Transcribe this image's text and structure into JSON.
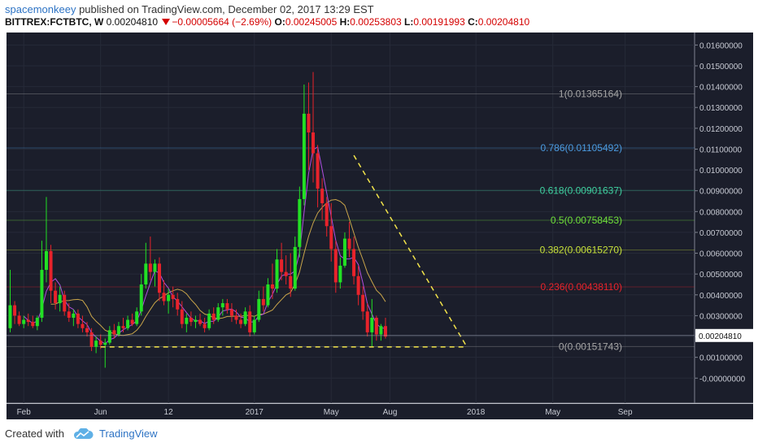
{
  "header": {
    "author": "spacemonkeey",
    "published_text": "published on TradingView.com, December 02, 2017 13:29 EST",
    "symbol": "BITTREX:FCTBTC, W",
    "last": "0.00204810",
    "change": "−0.00005664 (−2.69%)",
    "o_label": "O:",
    "o_value": "0.00245005",
    "h_label": "H:",
    "h_value": "0.00253803",
    "l_label": "L:",
    "l_value": "0.00191993",
    "c_label": "C:",
    "c_value": "0.00204810"
  },
  "footer": {
    "created_with": "Created with",
    "brand": "TradingView"
  },
  "colors": {
    "background": "#1b1e2b",
    "up": "#22e024",
    "down": "#e8232b",
    "fib_1": "#a6a6a6",
    "fib_786": "#4b9be0",
    "fib_618": "#3fd1a0",
    "fib_5": "#6fe03a",
    "fib_382": "#c6e03a",
    "fib_236": "#e8232b",
    "fib_0": "#a6a6a6",
    "trendline": "#f2e34a",
    "ma_fast": "#b04fe0",
    "ma_slow": "#c9a54a",
    "price_line": "#9aa0b0"
  },
  "chart_data": {
    "type": "candlestick",
    "interval": "weekly",
    "price_axis": {
      "ylim": [
        -0.0012,
        0.0166
      ],
      "ticks": [
        "0.01600000",
        "0.01500000",
        "0.01400000",
        "0.01300000",
        "0.01200000",
        "0.01100000",
        "0.01000000",
        "0.00900000",
        "0.00800000",
        "0.00700000",
        "0.00600000",
        "0.00500000",
        "0.00400000",
        "0.00300000",
        "0.00200000",
        "0.00100000",
        "-0.00000000"
      ],
      "tick_values": [
        0.016,
        0.015,
        0.014,
        0.013,
        0.012,
        0.011,
        0.01,
        0.009,
        0.008,
        0.007,
        0.006,
        0.005,
        0.004,
        0.003,
        0.002,
        0.001,
        0.0
      ]
    },
    "time_axis": {
      "labels": [
        "Feb",
        "Jun",
        "12",
        "2017",
        "May",
        "Aug",
        "2018",
        "May",
        "Sep"
      ],
      "label_weeks": [
        3,
        20,
        35,
        54,
        71,
        84,
        103,
        120,
        136
      ]
    },
    "current_price_label": "0.00204810",
    "current_price": 0.0020481,
    "fib_levels": [
      {
        "label": "1(0.01365164)",
        "value": 0.01365164,
        "color_key": "fib_1"
      },
      {
        "label": "0.786(0.01105492)",
        "value": 0.01105492,
        "color_key": "fib_786"
      },
      {
        "label": "0.618(0.00901637)",
        "value": 0.00901637,
        "color_key": "fib_618"
      },
      {
        "label": "0.5(0.00758453)",
        "value": 0.00758453,
        "color_key": "fib_5"
      },
      {
        "label": "0.382(0.00615270)",
        "value": 0.0061527,
        "color_key": "fib_382"
      },
      {
        "label": "0.236(0.00438110)",
        "value": 0.0043811,
        "color_key": "fib_236"
      },
      {
        "label": "0(0.00151743)",
        "value": 0.00151743,
        "color_key": "fib_0"
      }
    ],
    "trendlines": [
      {
        "from": [
          76,
          0.0107
        ],
        "to": [
          101,
          0.0015
        ]
      },
      {
        "from": [
          20,
          0.0015
        ],
        "to": [
          101,
          0.0015
        ]
      }
    ],
    "candles": [
      [
        0.0024,
        0.0052,
        0.0022,
        0.0035
      ],
      [
        0.0035,
        0.0037,
        0.0026,
        0.003
      ],
      [
        0.003,
        0.0032,
        0.0025,
        0.0026
      ],
      [
        0.0026,
        0.003,
        0.0024,
        0.0028
      ],
      [
        0.0028,
        0.0031,
        0.0025,
        0.0027
      ],
      [
        0.0027,
        0.003,
        0.0024,
        0.0025
      ],
      [
        0.0025,
        0.003,
        0.0023,
        0.0029
      ],
      [
        0.0029,
        0.0066,
        0.0027,
        0.0052
      ],
      [
        0.0052,
        0.0087,
        0.0046,
        0.0061
      ],
      [
        0.0061,
        0.0064,
        0.0036,
        0.0042
      ],
      [
        0.0042,
        0.0046,
        0.0033,
        0.0036
      ],
      [
        0.0036,
        0.0044,
        0.0032,
        0.004
      ],
      [
        0.004,
        0.0042,
        0.003,
        0.0032
      ],
      [
        0.0032,
        0.0036,
        0.0027,
        0.0029
      ],
      [
        0.0029,
        0.0033,
        0.0025,
        0.0031
      ],
      [
        0.0031,
        0.0033,
        0.0024,
        0.0026
      ],
      [
        0.0026,
        0.003,
        0.0022,
        0.0024
      ],
      [
        0.0024,
        0.0027,
        0.002,
        0.0022
      ],
      [
        0.0022,
        0.0024,
        0.0013,
        0.0015
      ],
      [
        0.0015,
        0.002,
        0.0012,
        0.0018
      ],
      [
        0.0018,
        0.0021,
        0.0014,
        0.0016
      ],
      [
        0.0016,
        0.0019,
        0.0005,
        0.0017
      ],
      [
        0.0017,
        0.0025,
        0.0016,
        0.0023
      ],
      [
        0.0023,
        0.0026,
        0.0019,
        0.0021
      ],
      [
        0.0021,
        0.0027,
        0.002,
        0.0025
      ],
      [
        0.0025,
        0.0029,
        0.0022,
        0.0024
      ],
      [
        0.0024,
        0.003,
        0.0023,
        0.0028
      ],
      [
        0.0028,
        0.0031,
        0.0025,
        0.0026
      ],
      [
        0.0026,
        0.0034,
        0.0025,
        0.0032
      ],
      [
        0.0032,
        0.005,
        0.003,
        0.0045
      ],
      [
        0.0045,
        0.0065,
        0.0043,
        0.0055
      ],
      [
        0.0055,
        0.0068,
        0.0047,
        0.0051
      ],
      [
        0.0051,
        0.0057,
        0.0044,
        0.0055
      ],
      [
        0.0055,
        0.0058,
        0.0037,
        0.0041
      ],
      [
        0.0041,
        0.0047,
        0.0035,
        0.0037
      ],
      [
        0.0037,
        0.0043,
        0.0031,
        0.004
      ],
      [
        0.004,
        0.0044,
        0.0034,
        0.0038
      ],
      [
        0.0038,
        0.0041,
        0.003,
        0.0033
      ],
      [
        0.0033,
        0.0037,
        0.0024,
        0.0026
      ],
      [
        0.0026,
        0.0031,
        0.0022,
        0.0029
      ],
      [
        0.0029,
        0.0032,
        0.0025,
        0.0027
      ],
      [
        0.0027,
        0.003,
        0.0024,
        0.0028
      ],
      [
        0.0028,
        0.0031,
        0.0025,
        0.0026
      ],
      [
        0.0026,
        0.0029,
        0.0022,
        0.0024
      ],
      [
        0.0024,
        0.0033,
        0.0023,
        0.0031
      ],
      [
        0.0031,
        0.0034,
        0.0026,
        0.0028
      ],
      [
        0.0028,
        0.0036,
        0.0027,
        0.0034
      ],
      [
        0.0034,
        0.0038,
        0.003,
        0.0036
      ],
      [
        0.0036,
        0.0038,
        0.0031,
        0.0033
      ],
      [
        0.0033,
        0.0036,
        0.0027,
        0.003
      ],
      [
        0.003,
        0.0033,
        0.0026,
        0.0028
      ],
      [
        0.0028,
        0.0031,
        0.0024,
        0.0026
      ],
      [
        0.0026,
        0.0034,
        0.0025,
        0.0032
      ],
      [
        0.0032,
        0.0035,
        0.002,
        0.0022
      ],
      [
        0.0022,
        0.003,
        0.0021,
        0.0028
      ],
      [
        0.0028,
        0.0042,
        0.0027,
        0.0038
      ],
      [
        0.0038,
        0.0044,
        0.0032,
        0.0035
      ],
      [
        0.0035,
        0.0048,
        0.0034,
        0.0045
      ],
      [
        0.0045,
        0.0055,
        0.0038,
        0.0043
      ],
      [
        0.0043,
        0.0062,
        0.0041,
        0.0057
      ],
      [
        0.0057,
        0.0065,
        0.0047,
        0.0051
      ],
      [
        0.0051,
        0.0059,
        0.0045,
        0.0049
      ],
      [
        0.0049,
        0.006,
        0.0039,
        0.0043
      ],
      [
        0.0043,
        0.0068,
        0.0042,
        0.0063
      ],
      [
        0.0063,
        0.0092,
        0.0058,
        0.0086
      ],
      [
        0.0086,
        0.0141,
        0.0083,
        0.0127
      ],
      [
        0.0127,
        0.0142,
        0.01,
        0.0118
      ],
      [
        0.0118,
        0.0147,
        0.0094,
        0.0108
      ],
      [
        0.0108,
        0.0112,
        0.0082,
        0.0091
      ],
      [
        0.0091,
        0.0096,
        0.0076,
        0.0084
      ],
      [
        0.0084,
        0.0087,
        0.0068,
        0.0073
      ],
      [
        0.0073,
        0.0084,
        0.0056,
        0.0062
      ],
      [
        0.0062,
        0.0066,
        0.0041,
        0.0046
      ],
      [
        0.0046,
        0.0058,
        0.0043,
        0.0054
      ],
      [
        0.0054,
        0.007,
        0.0053,
        0.0067
      ],
      [
        0.0067,
        0.0075,
        0.0058,
        0.0062
      ],
      [
        0.0062,
        0.0068,
        0.0045,
        0.0049
      ],
      [
        0.0049,
        0.0054,
        0.0035,
        0.004
      ],
      [
        0.004,
        0.0044,
        0.0028,
        0.0032
      ],
      [
        0.0032,
        0.0036,
        0.002,
        0.0022
      ],
      [
        0.0022,
        0.0038,
        0.0015,
        0.0029
      ],
      [
        0.0029,
        0.003,
        0.0018,
        0.0021
      ],
      [
        0.0021,
        0.0026,
        0.0018,
        0.0025
      ],
      [
        0.0025,
        0.0029,
        0.0019,
        0.002
      ]
    ]
  }
}
